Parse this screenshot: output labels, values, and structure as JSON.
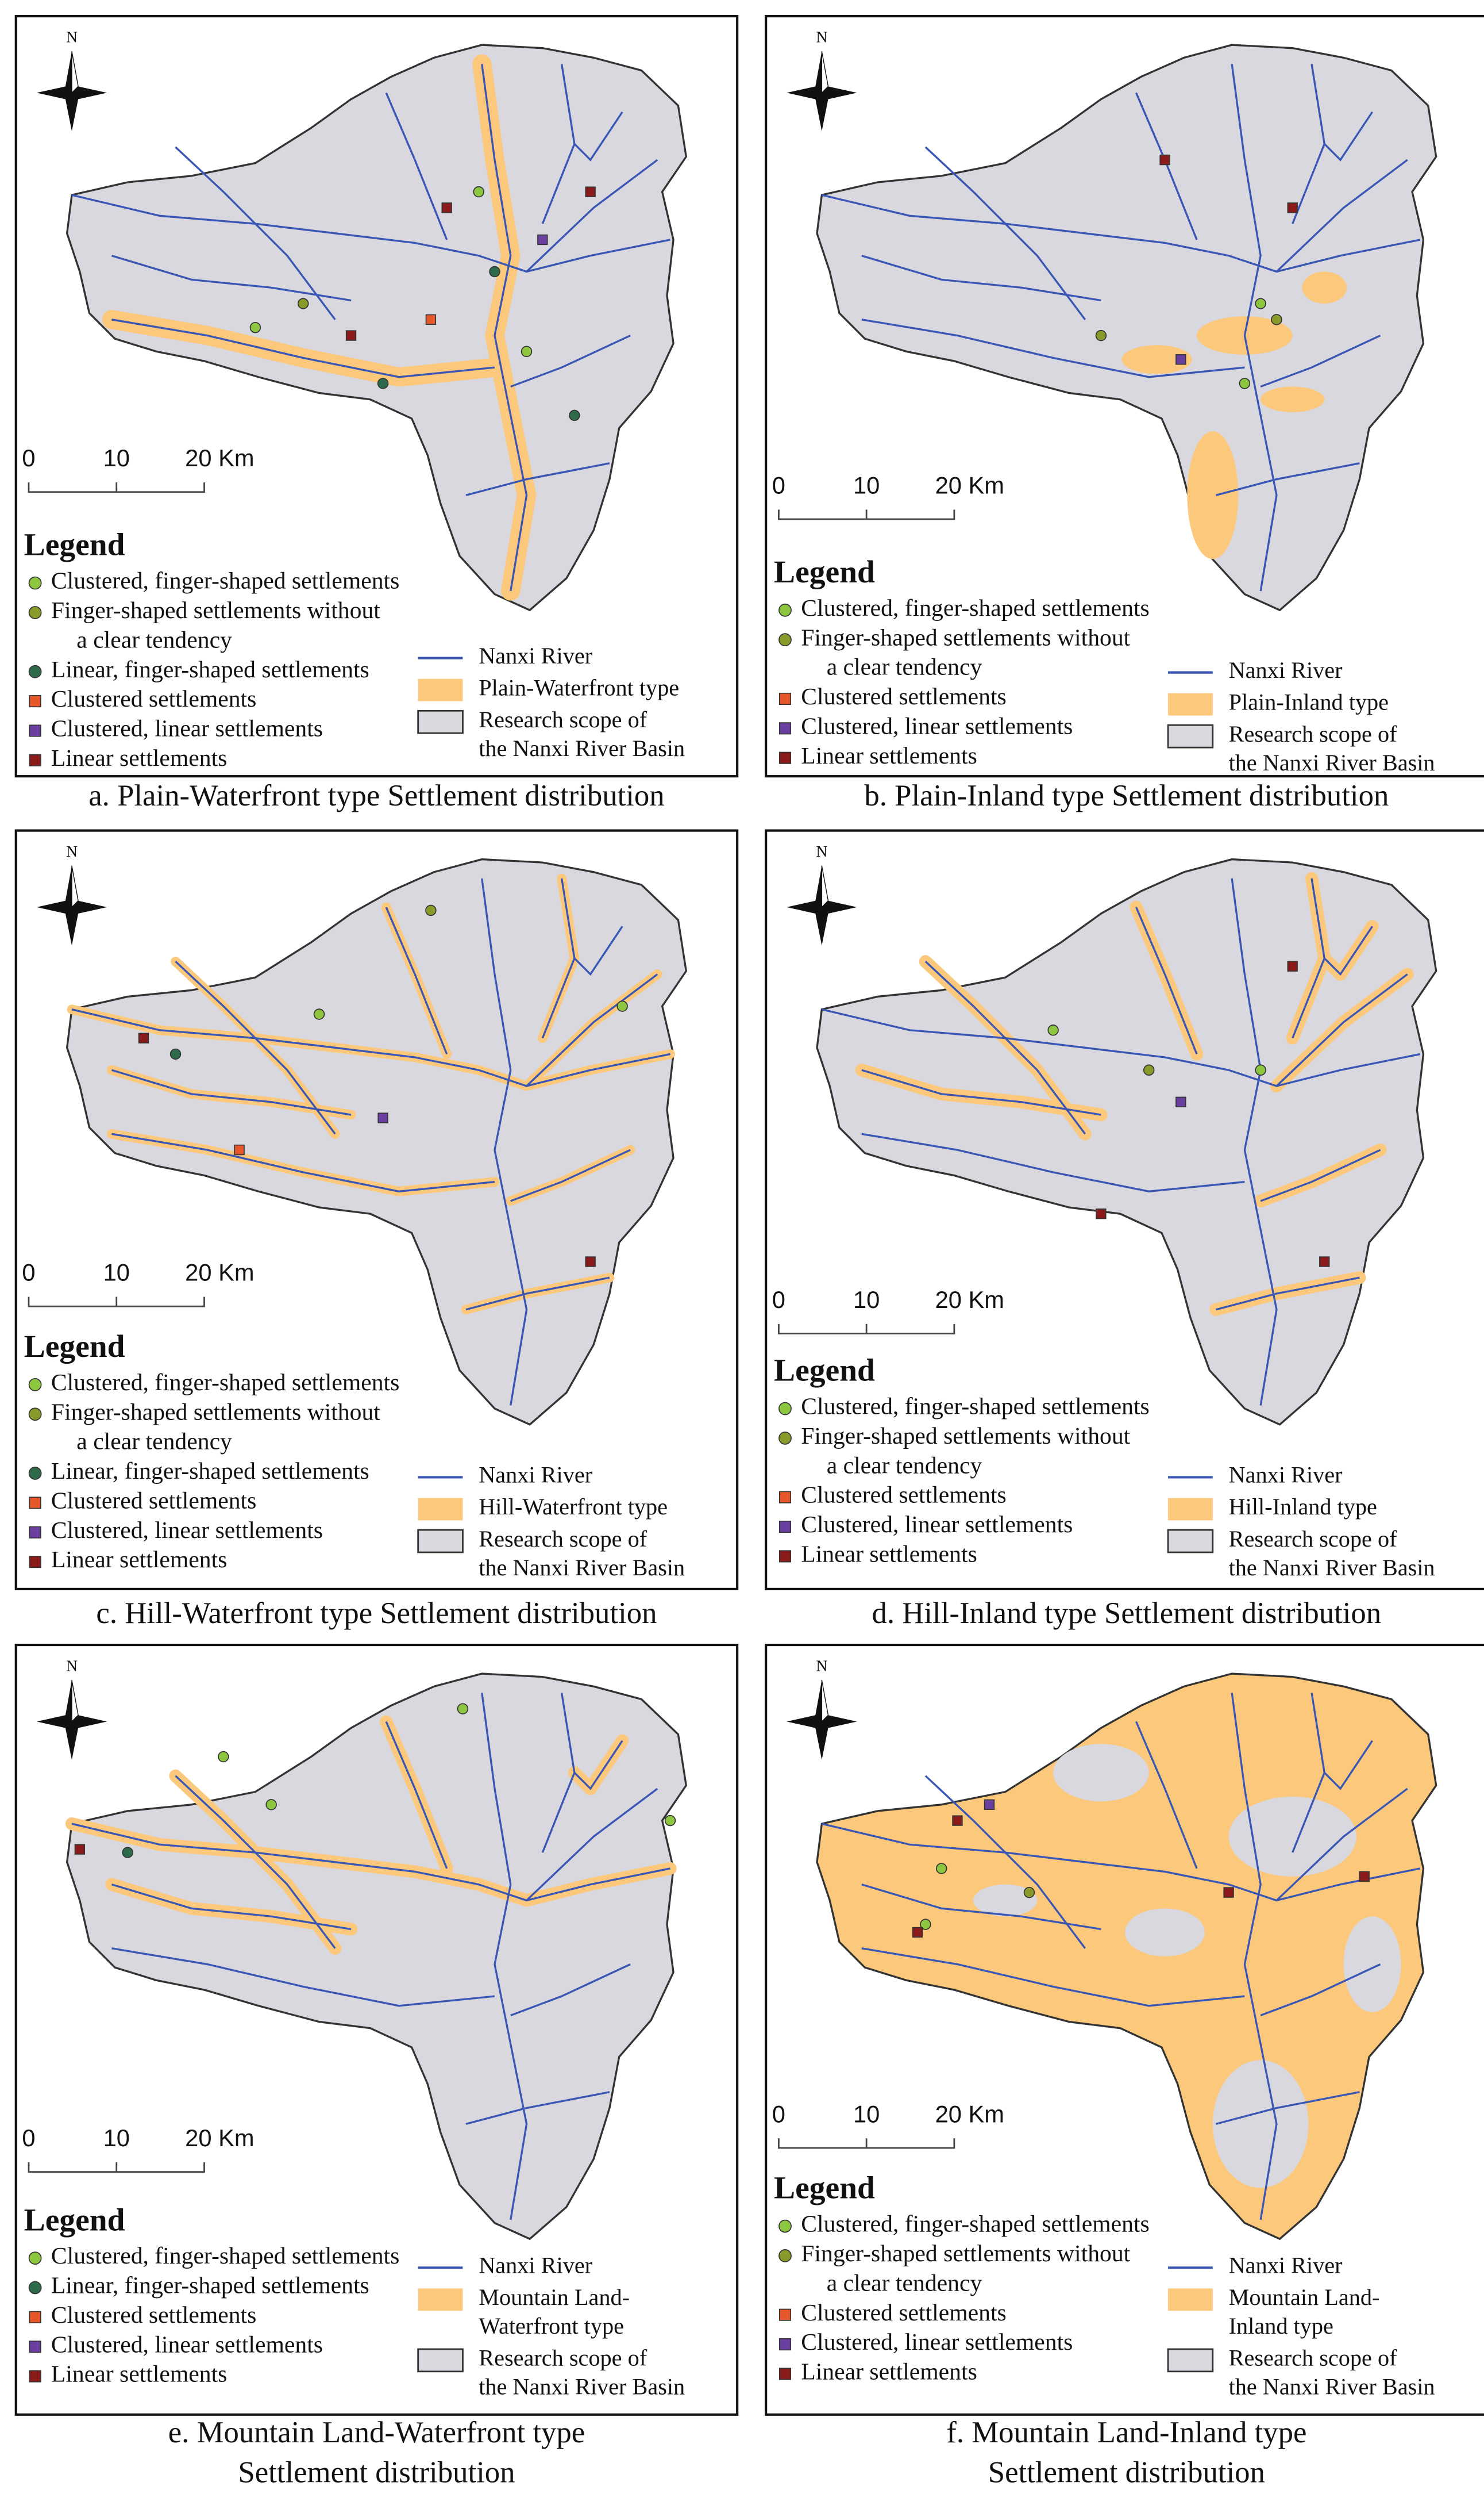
{
  "panels": [
    {
      "north": "N",
      "scale": [
        "0",
        "10",
        "20 Km"
      ],
      "legend_title": "Legend",
      "settlements": [
        {
          "label": [
            "Clustered, finger-shaped settlements"
          ],
          "shape": "circle",
          "color": "#8dc63f"
        },
        {
          "label": [
            "Finger-shaped settlements without",
            "a clear tendency"
          ],
          "shape": "circle",
          "color": "#8a9a2a"
        },
        {
          "label": [
            "Linear, finger-shaped settlements"
          ],
          "shape": "circle",
          "color": "#2e6b4a"
        },
        {
          "label": [
            "Clustered settlements"
          ],
          "shape": "square",
          "color": "#e8572a"
        },
        {
          "label": [
            "Clustered, linear settlements"
          ],
          "shape": "square",
          "color": "#6b3fa0"
        },
        {
          "label": [
            "Linear settlements"
          ],
          "shape": "square",
          "color": "#8b1a1a"
        }
      ],
      "layers": [
        {
          "label": [
            "Nanxi River"
          ],
          "symbol": "line",
          "color": "#3a56b4"
        },
        {
          "label": [
            "Plain-Waterfront type"
          ],
          "symbol": "patch",
          "color": "#fcc87c"
        },
        {
          "label": [
            "Research scope of",
            "the Nanxi River Basin"
          ],
          "symbol": "patch",
          "color": "#d8d8de"
        }
      ],
      "caption": [
        "a. Plain-Waterfront type Settlement distribution"
      ]
    },
    {
      "north": "N",
      "scale": [
        "0",
        "10",
        "20 Km"
      ],
      "legend_title": "Legend",
      "settlements": [
        {
          "label": [
            "Clustered, finger-shaped settlements"
          ],
          "shape": "circle",
          "color": "#8dc63f"
        },
        {
          "label": [
            "Finger-shaped settlements without",
            "a clear tendency"
          ],
          "shape": "circle",
          "color": "#8a9a2a"
        },
        {
          "label": [
            "Clustered settlements"
          ],
          "shape": "square",
          "color": "#e8572a"
        },
        {
          "label": [
            "Clustered, linear settlements"
          ],
          "shape": "square",
          "color": "#6b3fa0"
        },
        {
          "label": [
            "Linear settlements"
          ],
          "shape": "square",
          "color": "#8b1a1a"
        }
      ],
      "layers": [
        {
          "label": [
            "Nanxi River"
          ],
          "symbol": "line",
          "color": "#3a56b4"
        },
        {
          "label": [
            "Plain-Inland type"
          ],
          "symbol": "patch",
          "color": "#fcc87c"
        },
        {
          "label": [
            "Research scope of",
            "the Nanxi River Basin"
          ],
          "symbol": "patch",
          "color": "#d8d8de"
        }
      ],
      "caption": [
        "b. Plain-Inland type Settlement distribution"
      ]
    },
    {
      "north": "N",
      "scale": [
        "0",
        "10",
        "20 Km"
      ],
      "legend_title": "Legend",
      "settlements": [
        {
          "label": [
            "Clustered, finger-shaped settlements"
          ],
          "shape": "circle",
          "color": "#8dc63f"
        },
        {
          "label": [
            "Finger-shaped settlements without",
            "a clear tendency"
          ],
          "shape": "circle",
          "color": "#8a9a2a"
        },
        {
          "label": [
            "Linear, finger-shaped settlements"
          ],
          "shape": "circle",
          "color": "#2e6b4a"
        },
        {
          "label": [
            "Clustered settlements"
          ],
          "shape": "square",
          "color": "#e8572a"
        },
        {
          "label": [
            "Clustered, linear settlements"
          ],
          "shape": "square",
          "color": "#6b3fa0"
        },
        {
          "label": [
            "Linear settlements"
          ],
          "shape": "square",
          "color": "#8b1a1a"
        }
      ],
      "layers": [
        {
          "label": [
            "Nanxi River"
          ],
          "symbol": "line",
          "color": "#3a56b4"
        },
        {
          "label": [
            "Hill-Waterfront type"
          ],
          "symbol": "patch",
          "color": "#fcc87c"
        },
        {
          "label": [
            "Research scope of",
            "the Nanxi River Basin"
          ],
          "symbol": "patch",
          "color": "#d8d8de"
        }
      ],
      "caption": [
        "c. Hill-Waterfront type Settlement distribution"
      ]
    },
    {
      "north": "N",
      "scale": [
        "0",
        "10",
        "20 Km"
      ],
      "legend_title": "Legend",
      "settlements": [
        {
          "label": [
            "Clustered, finger-shaped settlements"
          ],
          "shape": "circle",
          "color": "#8dc63f"
        },
        {
          "label": [
            "Finger-shaped settlements without",
            "a clear tendency"
          ],
          "shape": "circle",
          "color": "#8a9a2a"
        },
        {
          "label": [
            "Clustered settlements"
          ],
          "shape": "square",
          "color": "#e8572a"
        },
        {
          "label": [
            "Clustered, linear settlements"
          ],
          "shape": "square",
          "color": "#6b3fa0"
        },
        {
          "label": [
            "Linear settlements"
          ],
          "shape": "square",
          "color": "#8b1a1a"
        }
      ],
      "layers": [
        {
          "label": [
            "Nanxi River"
          ],
          "symbol": "line",
          "color": "#3a56b4"
        },
        {
          "label": [
            "Hill-Inland type"
          ],
          "symbol": "patch",
          "color": "#fcc87c"
        },
        {
          "label": [
            "Research scope of",
            "the Nanxi River Basin"
          ],
          "symbol": "patch",
          "color": "#d8d8de"
        }
      ],
      "caption": [
        "d. Hill-Inland type Settlement distribution"
      ]
    },
    {
      "north": "N",
      "scale": [
        "0",
        "10",
        "20 Km"
      ],
      "legend_title": "Legend",
      "settlements": [
        {
          "label": [
            "Clustered, finger-shaped settlements"
          ],
          "shape": "circle",
          "color": "#8dc63f"
        },
        {
          "label": [
            "Linear, finger-shaped settlements"
          ],
          "shape": "circle",
          "color": "#2e6b4a"
        },
        {
          "label": [
            "Clustered settlements"
          ],
          "shape": "square",
          "color": "#e8572a"
        },
        {
          "label": [
            "Clustered, linear settlements"
          ],
          "shape": "square",
          "color": "#6b3fa0"
        },
        {
          "label": [
            "Linear settlements"
          ],
          "shape": "square",
          "color": "#8b1a1a"
        }
      ],
      "layers": [
        {
          "label": [
            "Nanxi River"
          ],
          "symbol": "line",
          "color": "#3a56b4"
        },
        {
          "label": [
            "Mountain Land-",
            "Waterfront type"
          ],
          "symbol": "patch",
          "color": "#fcc87c"
        },
        {
          "label": [
            "Research scope of",
            "the Nanxi River Basin"
          ],
          "symbol": "patch",
          "color": "#d8d8de"
        }
      ],
      "caption": [
        "e. Mountain Land-Waterfront type",
        "Settlement distribution"
      ]
    },
    {
      "north": "N",
      "scale": [
        "0",
        "10",
        "20 Km"
      ],
      "legend_title": "Legend",
      "settlements": [
        {
          "label": [
            "Clustered, finger-shaped settlements"
          ],
          "shape": "circle",
          "color": "#8dc63f"
        },
        {
          "label": [
            "Finger-shaped settlements without",
            "a clear tendency"
          ],
          "shape": "circle",
          "color": "#8a9a2a"
        },
        {
          "label": [
            "Clustered settlements"
          ],
          "shape": "square",
          "color": "#e8572a"
        },
        {
          "label": [
            "Clustered, linear settlements"
          ],
          "shape": "square",
          "color": "#6b3fa0"
        },
        {
          "label": [
            "Linear settlements"
          ],
          "shape": "square",
          "color": "#8b1a1a"
        }
      ],
      "layers": [
        {
          "label": [
            "Nanxi River"
          ],
          "symbol": "line",
          "color": "#3a56b4"
        },
        {
          "label": [
            "Mountain Land-",
            "Inland type"
          ],
          "symbol": "patch",
          "color": "#fcc87c"
        },
        {
          "label": [
            "Research scope of",
            "the Nanxi River Basin"
          ],
          "symbol": "patch",
          "color": "#d8d8de"
        }
      ],
      "caption": [
        "f. Mountain Land-Inland type",
        "Settlement distribution"
      ]
    }
  ]
}
